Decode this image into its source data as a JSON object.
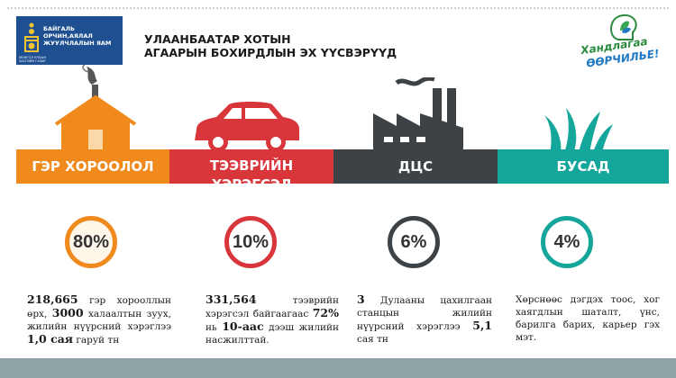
{
  "header": {
    "ministry": {
      "line1": "БАЙГАЛЬ",
      "line2": "ОРЧИН,АЯЛАЛ",
      "line3": "ЖУУЛЧЛАЛЫН ЯАМ",
      "small": "МОНГОЛ УЛСЫН ЗАСГИЙН ГАЗАР"
    },
    "title_line1": "УЛААНБААТАР ХОТЫН",
    "title_line2": "АГААРЫН БОХИРДЛЫН ЭХ ҮҮСВЭРҮҮД",
    "campaign_line1": "Хандлагаа",
    "campaign_line2": "ӨӨРЧИЛЬЕ!"
  },
  "sources": [
    {
      "label": "ГЭР ХОРООЛОЛ",
      "percent": "80%",
      "color": "#f08a1c",
      "icon": "ger-icon",
      "desc": {
        "n1": "218,665",
        "t1": " гэр хорооллын өрх, ",
        "n2": "3000",
        "t2": " халаалтын зуух, жилийн нүүрсний хэрэглээ ",
        "n3": "1,0 сая",
        "t3": " гаруй тн"
      }
    },
    {
      "label": "ТЭЭВРИЙН ХЭРЭГСЭЛ",
      "percent": "10%",
      "color": "#d9363c",
      "icon": "car-icon",
      "desc": {
        "n1": "331,564",
        "t1": " тээврийн хэрэгсэл байгаагаас ",
        "n2": "72%",
        "t2": " нь ",
        "n3": "10-аас",
        "t3": " дээш жилийн насжилттай."
      }
    },
    {
      "label": "ДЦС",
      "percent": "6%",
      "color": "#3d4246",
      "icon": "factory-icon",
      "desc": {
        "n1": "3",
        "t1": " Дулааны цахилгаан станцын жилийн нүүрсний хэрэглээ ",
        "n2": "5,1",
        "t2": " сая тн",
        "n3": "",
        "t3": ""
      }
    },
    {
      "label": "БУСАД",
      "percent": "4%",
      "color": "#14a59b",
      "icon": "grass-icon",
      "desc": {
        "n1": "",
        "t1": "Хөрснөөс дэгдэх тоос, хог хаягдлын шаталт, үнс, барилга барих, карьер гэх мэт.",
        "n2": "",
        "t2": "",
        "n3": "",
        "t3": ""
      }
    }
  ]
}
